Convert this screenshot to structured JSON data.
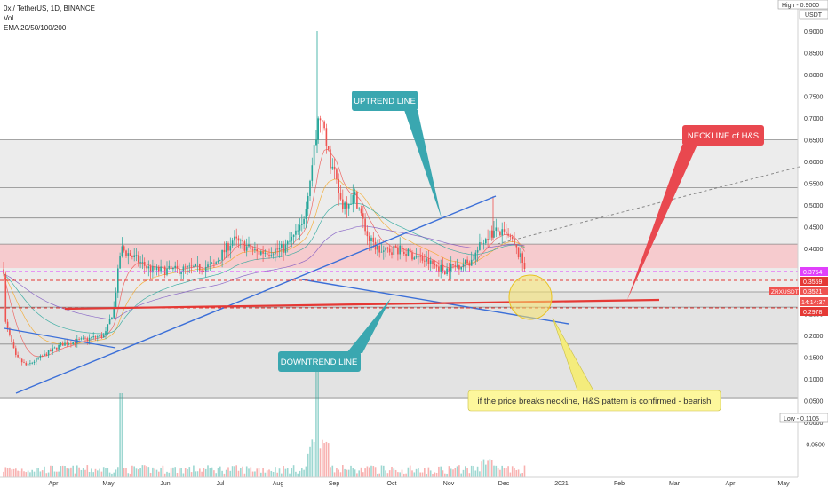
{
  "header": {
    "title": "0x / TetherUS, 1D, BINANCE",
    "vol_label": "Vol",
    "ema_label": "EMA 20/50/100/200"
  },
  "annotations": {
    "uptrend": "UPTREND LINE",
    "downtrend": "DOWNTREND LINE",
    "neckline": "NECKLINE of H&S",
    "note": "if the price breaks neckline, H&S pattern is confirmed - bearish"
  },
  "price_badges": {
    "high": "High - 0.9000",
    "usdt": "USDT",
    "low": "Low - 0.1105",
    "symbol": "ZRXUSDT",
    "last": "0.3521",
    "countdown": "14:14:37",
    "level_magenta": "0.3754",
    "level_red": "0.3559",
    "level_low_red": "0.2978"
  },
  "colors": {
    "up": "#26a69a",
    "down": "#ef5350",
    "trend_blue": "#3b6fd8",
    "neckline_red": "#e53935",
    "teal_callout": "#3aa7b0",
    "neck_callout": "#e9484f",
    "note_bg": "#fdf79c",
    "zone_pink": "#f8c6c9",
    "zone_grey": "#dcdcdc"
  },
  "chart_data": {
    "type": "candlestick",
    "ylim": [
      -0.05,
      0.95
    ],
    "y_ticks": [
      "0.9000",
      "0.8500",
      "0.8000",
      "0.7500",
      "0.7000",
      "0.6500",
      "0.6000",
      "0.5500",
      "0.5000",
      "0.4500",
      "0.4000",
      "0.3500",
      "0.3000",
      "0.2500",
      "0.2000",
      "0.1500",
      "0.1000",
      "0.0500",
      "0.0000",
      "-0.0500"
    ],
    "x_ticks": [
      "Apr",
      "May",
      "Jun",
      "Jul",
      "Aug",
      "Sep",
      "Oct",
      "Nov",
      "Dec",
      "2021",
      "Feb",
      "Mar",
      "Apr",
      "May"
    ],
    "horizontal_levels": [
      0.65,
      0.54,
      0.47,
      0.41,
      0.3,
      0.265,
      0.18,
      0.055
    ],
    "pink_zone": [
      0.355,
      0.41
    ],
    "key_points": [
      {
        "date": "Apr",
        "close": 0.23
      },
      {
        "date": "mid-Apr",
        "close": 0.13
      },
      {
        "date": "May",
        "close": 0.2
      },
      {
        "date": "mid-May",
        "close": 0.4
      },
      {
        "date": "Jun",
        "close": 0.35
      },
      {
        "date": "Jul",
        "close": 0.39
      },
      {
        "date": "Aug",
        "close": 0.43
      },
      {
        "date": "late-Aug",
        "close": 0.71
      },
      {
        "date": "Sep",
        "close": 0.52
      },
      {
        "date": "mid-Sep",
        "close": 0.42
      },
      {
        "date": "Oct",
        "close": 0.37
      },
      {
        "date": "Nov",
        "close": 0.35
      },
      {
        "date": "late-Nov",
        "close": 0.44
      },
      {
        "date": "Dec",
        "close": 0.3521
      }
    ],
    "volume_spikes": [
      "mid-May",
      "late-Aug"
    ],
    "grid": false
  }
}
